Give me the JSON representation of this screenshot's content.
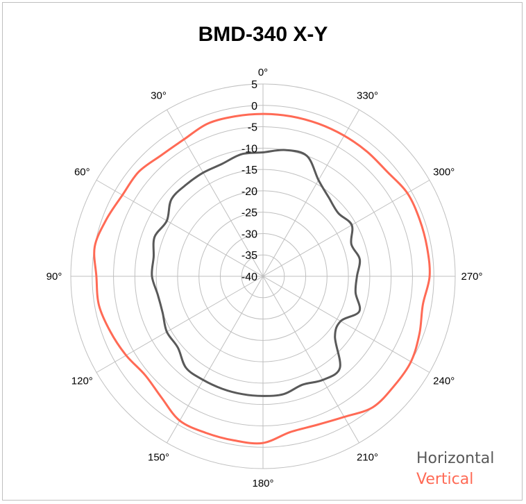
{
  "chart_data": {
    "type": "polar",
    "title": "BMD-340 X-Y",
    "r_range": [
      -40,
      5
    ],
    "radial_ticks": [
      -40,
      -35,
      -30,
      -25,
      -20,
      -15,
      -10,
      -5,
      0,
      5
    ],
    "radial_tick_labels": [
      "-40",
      "-35",
      "-30",
      "-25",
      "-20",
      "-15",
      "-10",
      "-5",
      "0",
      "5"
    ],
    "angle_ticks": [
      0,
      30,
      60,
      90,
      120,
      150,
      180,
      210,
      240,
      270,
      300,
      330
    ],
    "angle_tick_labels": [
      "0°",
      "30°",
      "60°",
      "90°",
      "120°",
      "150°",
      "180°",
      "210°",
      "240°",
      "270°",
      "300°",
      "330°"
    ],
    "angular_direction": "counterclockwise",
    "zero_location": "top",
    "grid": true,
    "legend_position": "bottom-right",
    "series": [
      {
        "name": "Horizontal",
        "color": "#595959",
        "angles_deg": [
          0,
          10,
          20,
          30,
          40,
          50,
          60,
          70,
          80,
          90,
          100,
          110,
          120,
          130,
          140,
          150,
          160,
          170,
          180,
          190,
          200,
          210,
          220,
          230,
          240,
          250,
          260,
          270,
          280,
          290,
          300,
          310,
          320,
          330,
          340,
          350,
          360
        ],
        "r": [
          -11,
          -11,
          -12,
          -12,
          -12,
          -12,
          -14,
          -13,
          -14,
          -14,
          -15,
          -15,
          -14,
          -14,
          -12,
          -12,
          -12,
          -12,
          -12,
          -12,
          -13,
          -12,
          -12,
          -18,
          -19,
          -16,
          -18,
          -18,
          -17,
          -18,
          -16,
          -17,
          -16,
          -14,
          -10,
          -10,
          -11
        ]
      },
      {
        "name": "Vertical",
        "color": "#ff6a55",
        "angles_deg": [
          0,
          10,
          20,
          30,
          40,
          50,
          60,
          70,
          80,
          90,
          100,
          110,
          120,
          130,
          140,
          150,
          160,
          170,
          180,
          190,
          200,
          210,
          220,
          230,
          240,
          250,
          260,
          270,
          280,
          290,
          300,
          310,
          320,
          330,
          340,
          350,
          360
        ],
        "r": [
          -2,
          -2,
          -2,
          -3,
          -3,
          -2,
          -2,
          -1,
          0,
          -1,
          -1,
          -2,
          -3,
          -4,
          -3,
          -1,
          -1,
          -1,
          -1,
          -3,
          -3,
          -2,
          0,
          0,
          0,
          -1,
          -2,
          -1,
          -1,
          -1,
          -1,
          -2,
          -2,
          -2,
          -2,
          -2,
          -2
        ]
      }
    ]
  }
}
